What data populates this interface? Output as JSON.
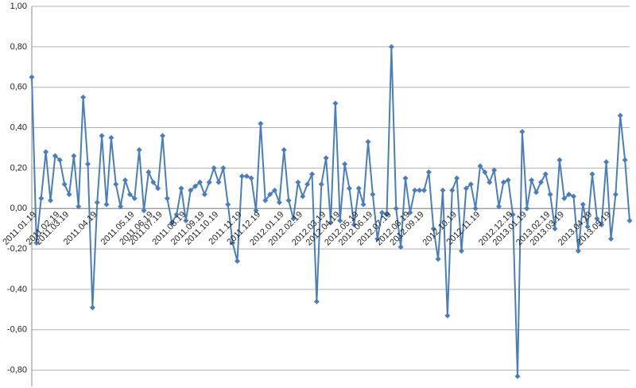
{
  "chart_data": {
    "type": "line",
    "categories": [
      "2011.01.19",
      null,
      null,
      null,
      null,
      "2011.02.19",
      null,
      "2011.03.19",
      null,
      null,
      null,
      null,
      null,
      "2011.04.19",
      null,
      null,
      null,
      null,
      null,
      null,
      null,
      "2011.05.19",
      null,
      null,
      null,
      "2011.06.19",
      null,
      "2011.07.19",
      null,
      null,
      null,
      null,
      "2011.08.19",
      null,
      null,
      null,
      "2011.09.19",
      null,
      null,
      "2011.10.19",
      null,
      null,
      null,
      null,
      "2011.11.19",
      null,
      null,
      null,
      "2011.12.19",
      null,
      null,
      null,
      null,
      "2012.01.19",
      null,
      null,
      null,
      "2012.02.19",
      null,
      null,
      null,
      null,
      "2012.03.19",
      null,
      null,
      "2012.04.19",
      null,
      null,
      null,
      "2012.05.19",
      null,
      null,
      "2012.06.19",
      null,
      null,
      null,
      "2012.07.19",
      null,
      null,
      null,
      "2012.08.19",
      null,
      null,
      "2012.09.19",
      null,
      null,
      null,
      null,
      null,
      null,
      "2012.10.19",
      null,
      null,
      null,
      null,
      "2012.11.19",
      null,
      null,
      null,
      null,
      null,
      null,
      "2012.12.19",
      null,
      null,
      "2013.01.19",
      null,
      null,
      null,
      null,
      "2013.02.19",
      null,
      null,
      "2013.03.19",
      null,
      null,
      null,
      null,
      null,
      "2013.04.19",
      null,
      null,
      null,
      "2013.05.19",
      null,
      null,
      null,
      null,
      null
    ],
    "values": [
      0.65,
      -0.17,
      0.05,
      0.28,
      0.04,
      0.26,
      0.24,
      0.12,
      0.07,
      0.26,
      0.01,
      0.55,
      0.22,
      -0.49,
      0.03,
      0.36,
      0.02,
      0.35,
      0.12,
      0.01,
      0.14,
      0.07,
      0.05,
      0.29,
      -0.01,
      0.18,
      0.13,
      0.1,
      0.36,
      0.05,
      -0.07,
      -0.03,
      0.1,
      -0.06,
      0.09,
      0.11,
      0.13,
      0.07,
      0.13,
      0.2,
      0.13,
      0.2,
      0.02,
      -0.17,
      -0.26,
      0.16,
      0.16,
      0.15,
      -0.01,
      0.42,
      0.04,
      0.07,
      0.09,
      0.03,
      0.29,
      0.04,
      -0.05,
      0.13,
      0.06,
      0.12,
      0.17,
      -0.46,
      0.12,
      0.25,
      -0.07,
      0.52,
      -0.06,
      0.22,
      0.1,
      -0.08,
      0.1,
      0.02,
      0.33,
      0.07,
      -0.15,
      -0.02,
      -0.03,
      0.8,
      0.0,
      -0.19,
      0.15,
      -0.02,
      0.09,
      0.09,
      0.09,
      0.18,
      -0.1,
      -0.25,
      0.09,
      -0.53,
      0.09,
      0.15,
      -0.21,
      0.1,
      0.12,
      0.0,
      0.21,
      0.18,
      0.13,
      0.19,
      0.01,
      0.13,
      0.14,
      -0.03,
      -0.83,
      0.38,
      0.0,
      0.14,
      0.08,
      0.13,
      0.17,
      0.07,
      -0.1,
      0.24,
      0.05,
      0.07,
      0.06,
      -0.21,
      0.02,
      -0.09,
      0.17,
      -0.05,
      -0.08,
      0.23,
      -0.15,
      0.07,
      0.46,
      0.24,
      -0.06
    ],
    "color": "#4a7ebb",
    "ylim": [
      -0.88,
      1.0
    ],
    "yticks": [
      {
        "value": -0.8,
        "label": "-0,80"
      },
      {
        "value": -0.6,
        "label": "-0,60"
      },
      {
        "value": -0.4,
        "label": "-0,40"
      },
      {
        "value": -0.2,
        "label": "-0,20"
      },
      {
        "value": 0,
        "label": "0,00"
      },
      {
        "value": 0.2,
        "label": "0,20"
      },
      {
        "value": 0.4,
        "label": "0,40"
      },
      {
        "value": 0.6,
        "label": "0,60"
      },
      {
        "value": 0.8,
        "label": "0,80"
      },
      {
        "value": 1,
        "label": "1,00"
      }
    ],
    "grid": true
  }
}
